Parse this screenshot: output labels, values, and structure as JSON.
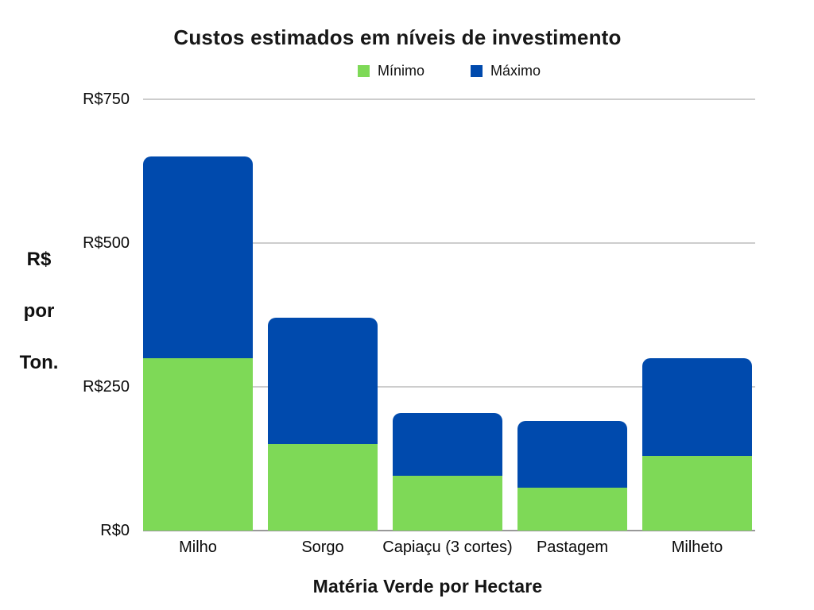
{
  "title": "Custos estimados em níveis de investimento",
  "legend": {
    "items": [
      {
        "label": "Mínimo",
        "color": "#7ED957"
      },
      {
        "label": "Máximo",
        "color": "#004AAD"
      }
    ]
  },
  "y_axis": {
    "title_lines": [
      "R$",
      "por",
      "Ton."
    ],
    "ticks": [
      {
        "label": "R$750",
        "value": 750
      },
      {
        "label": "R$500",
        "value": 500
      },
      {
        "label": "R$250",
        "value": 250
      },
      {
        "label": "R$0",
        "value": 0
      }
    ]
  },
  "x_axis": {
    "title": "Matéria Verde por Hectare"
  },
  "colors": {
    "minimo": "#7ED957",
    "maximo": "#004AAD",
    "gridline": "#CDCDCD",
    "baseline": "#999999",
    "text": "#111111"
  },
  "chart_data": {
    "type": "bar",
    "subtype": "stacked-overlay",
    "title": "Custos estimados em níveis de investimento",
    "xlabel": "Matéria Verde por Hectare",
    "ylabel": "R$ por Ton.",
    "categories": [
      "Milho",
      "Sorgo",
      "Capiaçu (3 cortes)",
      "Pastagem",
      "Milheto"
    ],
    "series": [
      {
        "name": "Mínimo",
        "color": "#7ED957",
        "values": [
          300,
          150,
          95,
          75,
          130
        ]
      },
      {
        "name": "Máximo",
        "color": "#004AAD",
        "values": [
          650,
          370,
          205,
          190,
          300
        ]
      }
    ],
    "ylim": [
      0,
      750
    ],
    "yticks": [
      0,
      250,
      500,
      750
    ],
    "grid": "horizontal",
    "legend_position": "top"
  }
}
